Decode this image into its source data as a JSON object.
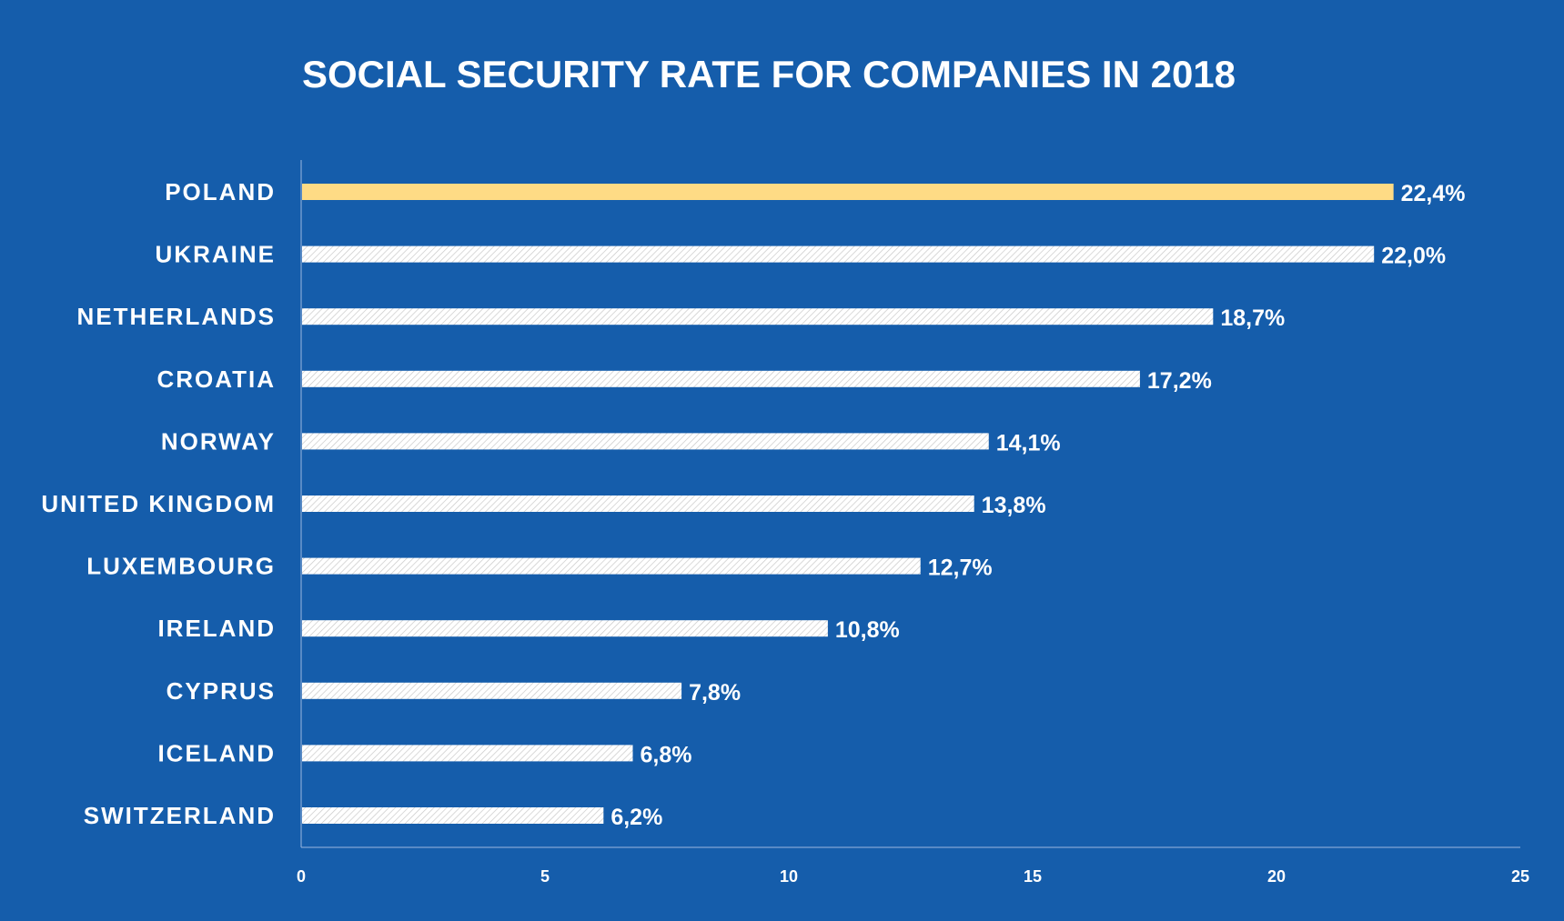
{
  "colors": {
    "background": "#155dab",
    "highlight_bar": "#fedb85",
    "bar": "#ffffff",
    "bar_hatch": "#c9c9c9",
    "text": "#ffffff",
    "axis_line": "#9bb8df"
  },
  "chart_data": {
    "type": "bar",
    "orientation": "horizontal",
    "title": "SOCIAL SECURITY RATE FOR COMPANIES IN 2018",
    "categories": [
      "POLAND",
      "UKRAINE",
      "NETHERLANDS",
      "CROATIA",
      "NORWAY",
      "UNITED KINGDOM",
      "LUXEMBOURG",
      "IRELAND",
      "CYPRUS",
      "ICELAND",
      "SWITZERLAND"
    ],
    "values": [
      22.4,
      22.0,
      18.7,
      17.2,
      14.1,
      13.8,
      12.7,
      10.8,
      7.8,
      6.8,
      6.2
    ],
    "value_labels": [
      "22,4%",
      "22,0%",
      "18,7%",
      "17,2%",
      "14,1%",
      "13,8%",
      "12,7%",
      "10,8%",
      "7,8%",
      "6,8%",
      "6,2%"
    ],
    "highlight": "POLAND",
    "xlim": [
      0,
      25
    ],
    "xticks": [
      0,
      5,
      10,
      15,
      20,
      25
    ],
    "xtick_labels": [
      "0",
      "5",
      "10",
      "15",
      "20",
      "25"
    ],
    "xlabel": "",
    "ylabel": "",
    "grid": false,
    "legend": "none"
  }
}
